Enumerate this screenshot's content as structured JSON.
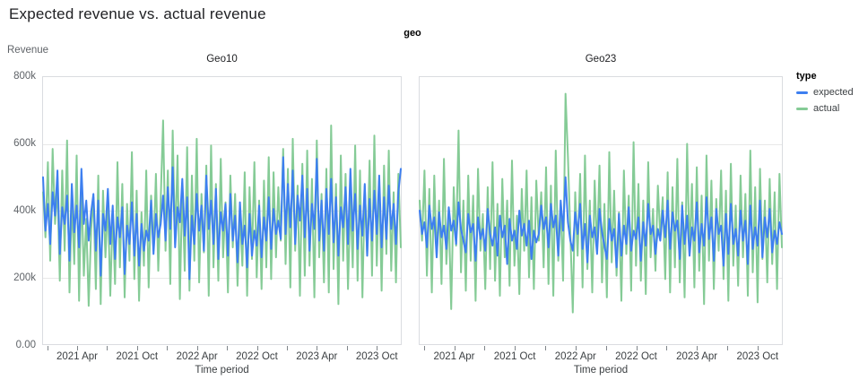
{
  "page": {
    "title": "Expected revenue vs. actual revenue"
  },
  "facet_field_label": "geo",
  "y_axis": {
    "label": "Revenue",
    "ticks": [
      "800k",
      "600k",
      "400k",
      "200k",
      "0.00"
    ]
  },
  "x_axis": {
    "label": "Time period",
    "ticks": [
      "2021 Apr",
      "2021 Oct",
      "2022 Apr",
      "2022 Oct",
      "2023 Apr",
      "2023 Oct"
    ]
  },
  "legend": {
    "title": "type",
    "items": [
      "expected",
      "actual"
    ]
  },
  "chart_data": {
    "type": "line",
    "title": "Expected revenue vs. actual revenue",
    "facet_by": "geo",
    "xlabel": "Time period",
    "ylabel": "Revenue",
    "ylim": [
      0,
      800000
    ],
    "y_tick_values": [
      0,
      200000,
      400000,
      600000,
      800000
    ],
    "x_domain": [
      "2021 Jan",
      "2023 Dec"
    ],
    "x_tick_labels": [
      "2021 Apr",
      "2021 Oct",
      "2022 Apr",
      "2022 Oct",
      "2023 Apr",
      "2023 Oct"
    ],
    "cadence": "weekly (approximate, 150 points per series)",
    "values_unit": "thousands",
    "grid": "horizontal-only",
    "legend_position": "top-right",
    "series_colors": {
      "expected": "#3d7ff0",
      "actual": "#85cb96"
    },
    "facets": [
      {
        "name": "Geo10",
        "series": [
          {
            "name": "expected",
            "values": [
              500,
              340,
              420,
              300,
              455,
              385,
              520,
              270,
              410,
              360,
              445,
              250,
              480,
              335,
              415,
              290,
              525,
              360,
              430,
              310,
              395,
              450,
              280,
              430,
              205,
              390,
              340,
              465,
              300,
              415,
              255,
              380,
              320,
              410,
              210,
              355,
              300,
              425,
              265,
              390,
              235,
              360,
              280,
              340,
              310,
              430,
              270,
              390,
              320,
              360,
              445,
              310,
              470,
              345,
              530,
              290,
              410,
              365,
              495,
              325,
              440,
              195,
              385,
              300,
              450,
              340,
              415,
              280,
              505,
              345,
              430,
              300,
              465,
              255,
              395,
              340,
              420,
              265,
              450,
              310,
              385,
              245,
              425,
              300,
              355,
              230,
              390,
              265,
              340,
              295,
              415,
              260,
              380,
              310,
              440,
              285,
              405,
              330,
              370,
              315,
              560,
              330,
              480,
              350,
              520,
              300,
              445,
              370,
              505,
              320,
              465,
              280,
              420,
              345,
              555,
              310,
              430,
              280,
              465,
              330,
              495,
              305,
              440,
              265,
              410,
              350,
              470,
              300,
              525,
              340,
              450,
              285,
              415,
              325,
              480,
              265,
              435,
              310,
              460,
              330,
              505,
              290,
              440,
              315,
              475,
              345,
              420,
              300,
              455,
              525
            ]
          },
          {
            "name": "actual",
            "values": [
              455,
              320,
              545,
              250,
              585,
              360,
              470,
              190,
              520,
              280,
              610,
              155,
              430,
              240,
              565,
              130,
              480,
              205,
              375,
              115,
              340,
              440,
              165,
              505,
              120,
              460,
              260,
              430,
              145,
              395,
              180,
              545,
              230,
              480,
              140,
              420,
              250,
              575,
              195,
              460,
              130,
              395,
              235,
              520,
              170,
              445,
              280,
              510,
              220,
              430,
              670,
              280,
              520,
              180,
              640,
              300,
              565,
              135,
              475,
              220,
              590,
              160,
              505,
              250,
              615,
              185,
              450,
              275,
              535,
              145,
              595,
              230,
              480,
              190,
              555,
              260,
              425,
              155,
              505,
              290,
              450,
              175,
              395,
              235,
              515,
              145,
              470,
              255,
              545,
              200,
              430,
              165,
              490,
              230,
              560,
              195,
              515,
              260,
              470,
              310,
              585,
              240,
              525,
              170,
              615,
              280,
              475,
              145,
              540,
              205,
              580,
              235,
              495,
              140,
              610,
              260,
              450,
              185,
              525,
              155,
              655,
              225,
              480,
              120,
              565,
              250,
              510,
              165,
              445,
              230,
              595,
              190,
              520,
              140,
              475,
              265,
              550,
              205,
              625,
              235,
              490,
              160,
              535,
              270,
              580,
              220,
              455,
              185,
              510,
              290
            ]
          }
        ]
      },
      {
        "name": "Geo23",
        "series": [
          {
            "name": "expected",
            "values": [
              400,
              330,
              365,
              290,
              415,
              345,
              380,
              260,
              395,
              320,
              355,
              285,
              410,
              340,
              370,
              300,
              425,
              345,
              310,
              275,
              390,
              335,
              360,
              250,
              380,
              315,
              345,
              280,
              405,
              330,
              295,
              350,
              265,
              385,
              320,
              355,
              240,
              375,
              310,
              340,
              285,
              400,
              325,
              360,
              295,
              370,
              255,
              340,
              305,
              330,
              415,
              345,
              380,
              290,
              420,
              350,
              385,
              265,
              430,
              340,
              500,
              365,
              310,
              280,
              395,
              330,
              420,
              285,
              360,
              245,
              385,
              320,
              350,
              270,
              405,
              335,
              295,
              255,
              375,
              310,
              345,
              230,
              390,
              265,
              355,
              300,
              410,
              280,
              340,
              315,
              380,
              250,
              365,
              295,
              420,
              330,
              355,
              270,
              345,
              310,
              400,
              320,
              430,
              285,
              395,
              340,
              370,
              255,
              415,
              300,
              385,
              265,
              350,
              310,
              425,
              275,
              360,
              295,
              440,
              315,
              380,
              250,
              405,
              330,
              355,
              235,
              390,
              270,
              420,
              300,
              345,
              265,
              400,
              310,
              370,
              240,
              415,
              285,
              350,
              295,
              430,
              260,
              380,
              320,
              405,
              275,
              340,
              300,
              365,
              330
            ]
          },
          {
            "name": "actual",
            "values": [
              430,
              310,
              520,
              205,
              465,
              155,
              505,
              260,
              430,
              180,
              555,
              240,
              390,
              105,
              470,
              295,
              640,
              215,
              430,
              160,
              505,
              250,
              445,
              130,
              525,
              280,
              390,
              165,
              470,
              225,
              545,
              190,
              420,
              145,
              495,
              260,
              430,
              175,
              550,
              235,
              385,
              150,
              465,
              280,
              520,
              200,
              440,
              165,
              490,
              310,
              455,
              230,
              530,
              180,
              475,
              145,
              580,
              250,
              420,
              190,
              750,
              560,
              330,
              95,
              455,
              265,
              510,
              170,
              565,
              225,
              430,
              155,
              490,
              280,
              535,
              185,
              420,
              140,
              575,
              245,
              460,
              205,
              395,
              130,
              520,
              270,
              445,
              160,
              605,
              235,
              480,
              190,
              430,
              150,
              545,
              260,
              405,
              220,
              475,
              320,
              440,
              195,
              515,
              155,
              470,
              230,
              555,
              185,
              425,
              140,
              600,
              265,
              480,
              170,
              530,
              220,
              445,
              120,
              565,
              250,
              490,
              165,
              435,
              280,
              520,
              195,
              460,
              130,
              540,
              235,
              415,
              175,
              505,
              260,
              450,
              145,
              580,
              215,
              470,
              125,
              525,
              255,
              430,
              185,
              495,
              240,
              455,
              165,
              510,
              290
            ]
          }
        ]
      }
    ]
  }
}
